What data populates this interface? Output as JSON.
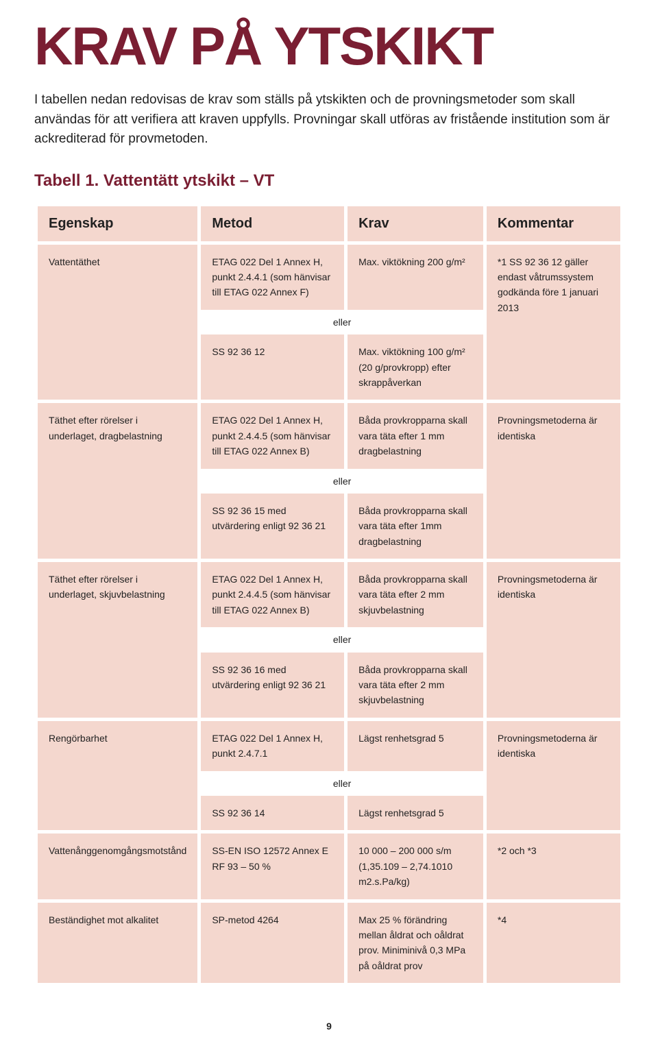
{
  "colors": {
    "heading": "#7a1e32",
    "cell_bg": "#f4d7ce",
    "page_bg": "#ffffff",
    "text": "#222222"
  },
  "page_title": "KRAV PÅ YTSKIKT",
  "intro": "I tabellen nedan redovisas de krav som ställs på ytskikten och de provningsmetoder som skall användas för att verifiera att kraven uppfylls. Provningar skall utföras av fristående institution som är ackrediterad för provmetoden.",
  "table_caption": "Tabell 1. Vattentätt ytskikt – VT",
  "headers": {
    "egenskap": "Egenskap",
    "metod": "Metod",
    "krav": "Krav",
    "kommentar": "Kommentar"
  },
  "rows": {
    "r1": {
      "egenskap": "Vattentäthet",
      "metod_a": "ETAG 022 Del 1 Annex H, punkt 2.4.4.1 (som hänvisar till ETAG 022 Annex F)",
      "krav_a": "Max. viktökning 200 g/m²",
      "kommentar": "*1 SS 92 36 12 gäller endast våtrumssystem godkända före 1 januari 2013",
      "eller": "eller",
      "metod_b": "SS 92 36 12",
      "krav_b": "Max. viktökning 100 g/m² (20 g/provkropp) efter skrappåverkan"
    },
    "r2": {
      "egenskap": "Täthet efter rörelser i underlaget, dragbelastning",
      "metod_a": "ETAG 022 Del 1 Annex H, punkt 2.4.4.5 (som hänvisar till ETAG 022 Annex B)",
      "krav_a": "Båda provkropparna skall vara täta efter 1 mm dragbelastning",
      "kommentar": "Provningsmetoderna är identiska",
      "eller": "eller",
      "metod_b": "SS 92 36 15 med utvärdering enligt 92 36 21",
      "krav_b": "Båda provkropparna skall vara täta efter 1mm dragbelastning"
    },
    "r3": {
      "egenskap": "Täthet efter rörelser i underlaget, skjuvbelastning",
      "metod_a": "ETAG 022 Del 1 Annex H, punkt 2.4.4.5 (som hänvisar till ETAG 022 Annex B)",
      "krav_a": "Båda provkropparna skall vara täta efter 2 mm skjuvbelastning",
      "kommentar": "Provningsmetoderna är identiska",
      "eller": "eller",
      "metod_b": "SS 92 36 16 med utvärdering enligt 92 36 21",
      "krav_b": "Båda provkropparna skall vara täta efter 2 mm skjuvbelastning"
    },
    "r4": {
      "egenskap": "Rengörbarhet",
      "metod_a": "ETAG 022 Del 1 Annex H, punkt 2.4.7.1",
      "krav_a": "Lägst renhetsgrad 5",
      "kommentar": "Provningsmetoderna är identiska",
      "eller": "eller",
      "metod_b": "SS 92 36 14",
      "krav_b": "Lägst renhetsgrad 5"
    },
    "r5": {
      "egenskap": "Vattenånggenomgångsmotstånd",
      "metod": "SS-EN ISO 12572 Annex E RF 93 – 50 %",
      "krav": "10 000 – 200 000 s/m (1,35.109 – 2,74.1010 m2.s.Pa/kg)",
      "kommentar": "*2 och *3"
    },
    "r6": {
      "egenskap": "Beständighet mot alkalitet",
      "metod": "SP-metod 4264",
      "krav": "Max 25 % förändring mellan åldrat och oåldrat prov. Miniminivå 0,3 MPa på oåldrat prov",
      "kommentar": "*4"
    }
  },
  "page_number": "9"
}
